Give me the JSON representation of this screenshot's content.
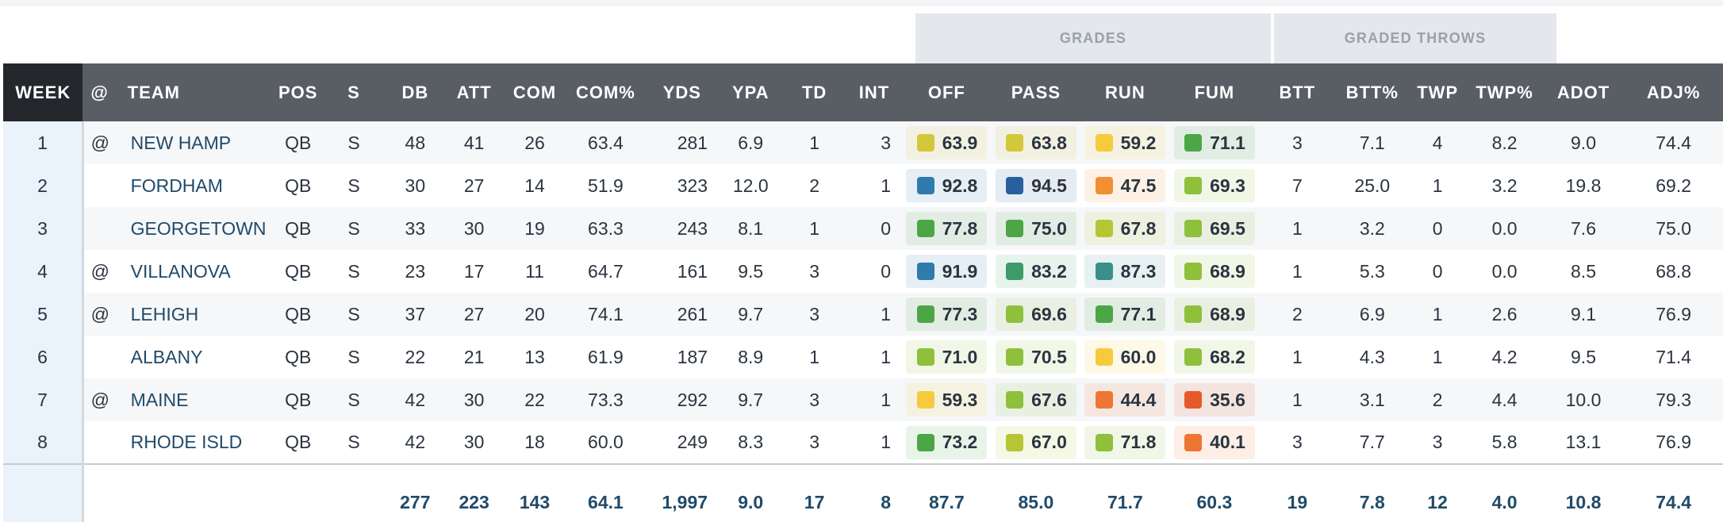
{
  "groups": {
    "grades": "GRADES",
    "graded_throws": "GRADED THROWS"
  },
  "columns": [
    "WEEK",
    "@",
    "TEAM",
    "POS",
    "S",
    "DB",
    "ATT",
    "COM",
    "COM%",
    "YDS",
    "YPA",
    "TD",
    "INT",
    "OFF",
    "PASS",
    "RUN",
    "FUM",
    "BTT",
    "BTT%",
    "TWP",
    "TWP%",
    "ADOT",
    "ADJ%"
  ],
  "grade_colors": {
    "dark_blue": "#2a5f9e",
    "blue": "#2f7bab",
    "teal": "#3a8f8a",
    "green_teal": "#3d9b6a",
    "green": "#4ca646",
    "lime": "#8fc03c",
    "yellow_green": "#b5c635",
    "olive": "#d4c83a",
    "yellow": "#f5cb3d",
    "orange": "#f08f33",
    "dark_orange": "#ee7633",
    "red_orange": "#e45a2a"
  },
  "rows": [
    {
      "week": "1",
      "at": "@",
      "team": "NEW HAMP",
      "pos": "QB",
      "s": "S",
      "db": "48",
      "att": "41",
      "com": "26",
      "comp": "63.4",
      "yds": "281",
      "ypa": "6.9",
      "td": "1",
      "int": "3",
      "off": {
        "v": "63.9",
        "c": "olive"
      },
      "pass": {
        "v": "63.8",
        "c": "olive"
      },
      "run": {
        "v": "59.2",
        "c": "yellow"
      },
      "fum": {
        "v": "71.1",
        "c": "green"
      },
      "btt": "3",
      "bttp": "7.1",
      "twp": "4",
      "twpp": "8.2",
      "adot": "9.0",
      "adj": "74.4"
    },
    {
      "week": "2",
      "at": "",
      "team": "FORDHAM",
      "pos": "QB",
      "s": "S",
      "db": "30",
      "att": "27",
      "com": "14",
      "comp": "51.9",
      "yds": "323",
      "ypa": "12.0",
      "td": "2",
      "int": "1",
      "off": {
        "v": "92.8",
        "c": "blue"
      },
      "pass": {
        "v": "94.5",
        "c": "dark_blue"
      },
      "run": {
        "v": "47.5",
        "c": "orange"
      },
      "fum": {
        "v": "69.3",
        "c": "lime"
      },
      "btt": "7",
      "bttp": "25.0",
      "twp": "1",
      "twpp": "3.2",
      "adot": "19.8",
      "adj": "69.2"
    },
    {
      "week": "3",
      "at": "",
      "team": "GEORGETOWN",
      "pos": "QB",
      "s": "S",
      "db": "33",
      "att": "30",
      "com": "19",
      "comp": "63.3",
      "yds": "243",
      "ypa": "8.1",
      "td": "1",
      "int": "0",
      "off": {
        "v": "77.8",
        "c": "green"
      },
      "pass": {
        "v": "75.0",
        "c": "green"
      },
      "run": {
        "v": "67.8",
        "c": "yellow_green"
      },
      "fum": {
        "v": "69.5",
        "c": "lime"
      },
      "btt": "1",
      "bttp": "3.2",
      "twp": "0",
      "twpp": "0.0",
      "adot": "7.6",
      "adj": "75.0"
    },
    {
      "week": "4",
      "at": "@",
      "team": "VILLANOVA",
      "pos": "QB",
      "s": "S",
      "db": "23",
      "att": "17",
      "com": "11",
      "comp": "64.7",
      "yds": "161",
      "ypa": "9.5",
      "td": "3",
      "int": "0",
      "off": {
        "v": "91.9",
        "c": "blue"
      },
      "pass": {
        "v": "83.2",
        "c": "green_teal"
      },
      "run": {
        "v": "87.3",
        "c": "teal"
      },
      "fum": {
        "v": "68.9",
        "c": "lime"
      },
      "btt": "1",
      "bttp": "5.3",
      "twp": "0",
      "twpp": "0.0",
      "adot": "8.5",
      "adj": "68.8"
    },
    {
      "week": "5",
      "at": "@",
      "team": "LEHIGH",
      "pos": "QB",
      "s": "S",
      "db": "37",
      "att": "27",
      "com": "20",
      "comp": "74.1",
      "yds": "261",
      "ypa": "9.7",
      "td": "3",
      "int": "1",
      "off": {
        "v": "77.3",
        "c": "green"
      },
      "pass": {
        "v": "69.6",
        "c": "lime"
      },
      "run": {
        "v": "77.1",
        "c": "green"
      },
      "fum": {
        "v": "68.9",
        "c": "lime"
      },
      "btt": "2",
      "bttp": "6.9",
      "twp": "1",
      "twpp": "2.6",
      "adot": "9.1",
      "adj": "76.9"
    },
    {
      "week": "6",
      "at": "",
      "team": "ALBANY",
      "pos": "QB",
      "s": "S",
      "db": "22",
      "att": "21",
      "com": "13",
      "comp": "61.9",
      "yds": "187",
      "ypa": "8.9",
      "td": "1",
      "int": "1",
      "off": {
        "v": "71.0",
        "c": "lime"
      },
      "pass": {
        "v": "70.5",
        "c": "lime"
      },
      "run": {
        "v": "60.0",
        "c": "yellow"
      },
      "fum": {
        "v": "68.2",
        "c": "lime"
      },
      "btt": "1",
      "bttp": "4.3",
      "twp": "1",
      "twpp": "4.2",
      "adot": "9.5",
      "adj": "71.4"
    },
    {
      "week": "7",
      "at": "@",
      "team": "MAINE",
      "pos": "QB",
      "s": "S",
      "db": "42",
      "att": "30",
      "com": "22",
      "comp": "73.3",
      "yds": "292",
      "ypa": "9.7",
      "td": "3",
      "int": "1",
      "off": {
        "v": "59.3",
        "c": "yellow"
      },
      "pass": {
        "v": "67.6",
        "c": "lime"
      },
      "run": {
        "v": "44.4",
        "c": "dark_orange"
      },
      "fum": {
        "v": "35.6",
        "c": "red_orange"
      },
      "btt": "1",
      "bttp": "3.1",
      "twp": "2",
      "twpp": "4.4",
      "adot": "10.0",
      "adj": "79.3"
    },
    {
      "week": "8",
      "at": "",
      "team": "RHODE ISLD",
      "pos": "QB",
      "s": "S",
      "db": "42",
      "att": "30",
      "com": "18",
      "comp": "60.0",
      "yds": "249",
      "ypa": "8.3",
      "td": "3",
      "int": "1",
      "off": {
        "v": "73.2",
        "c": "green"
      },
      "pass": {
        "v": "67.0",
        "c": "yellow_green"
      },
      "run": {
        "v": "71.8",
        "c": "lime"
      },
      "fum": {
        "v": "40.1",
        "c": "dark_orange"
      },
      "btt": "3",
      "bttp": "7.7",
      "twp": "3",
      "twpp": "5.8",
      "adot": "13.1",
      "adj": "76.9"
    }
  ],
  "totals": {
    "db": "277",
    "att": "223",
    "com": "143",
    "comp": "64.1",
    "yds": "1,997",
    "ypa": "9.0",
    "td": "17",
    "int": "8",
    "off": "87.7",
    "pass": "85.0",
    "run": "71.7",
    "fum": "60.3",
    "btt": "19",
    "bttp": "7.8",
    "twp": "12",
    "twpp": "4.0",
    "adot": "10.8",
    "adj": "74.4"
  }
}
